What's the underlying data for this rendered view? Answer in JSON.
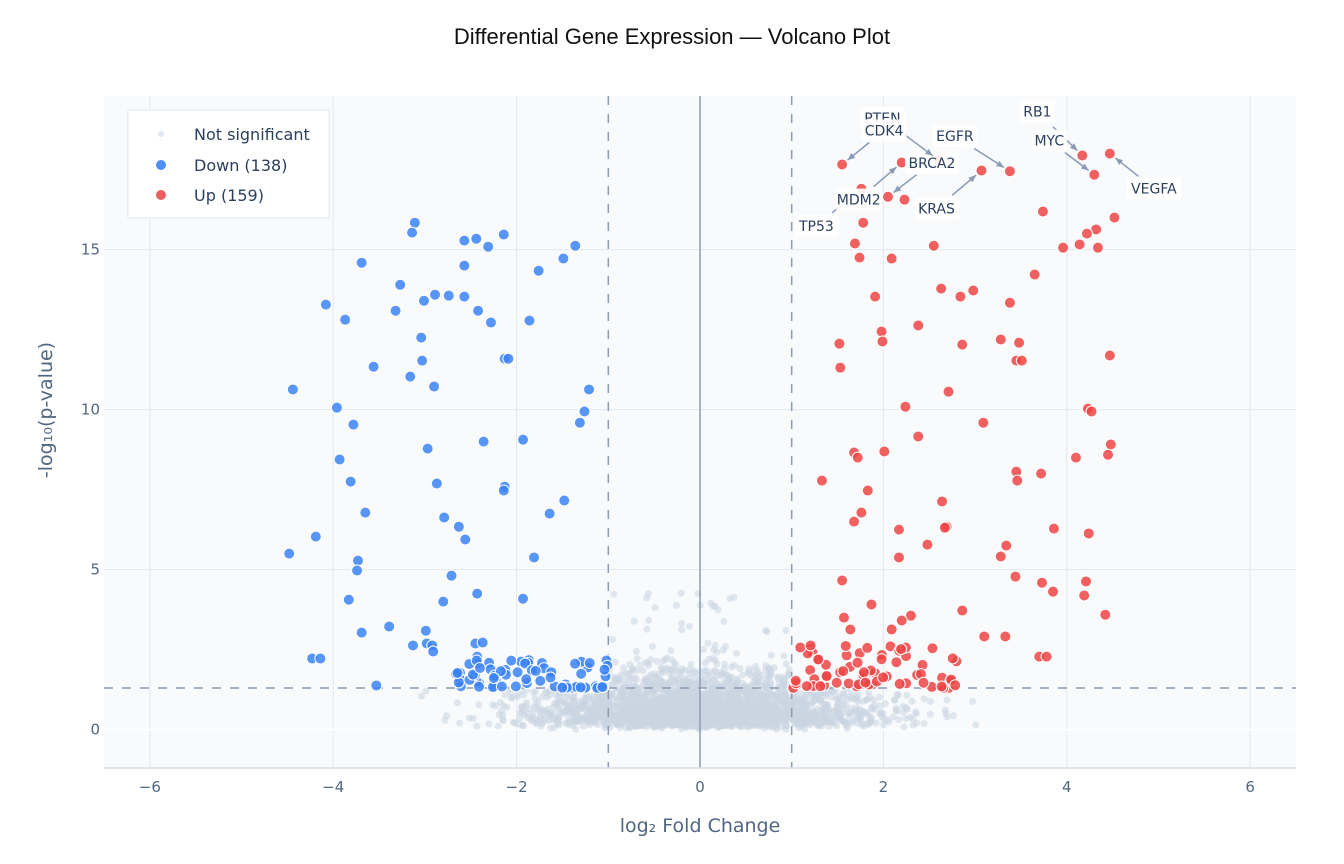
{
  "chart_data": {
    "type": "scatter",
    "title": "Differential Gene Expression — Volcano Plot",
    "xlabel": "log₂ Fold Change",
    "ylabel": "-log₁₀(p-value)",
    "xlim": [
      -6.5,
      6.5
    ],
    "ylim": [
      -1.2,
      19.8
    ],
    "xticks": [
      -6,
      -4,
      -2,
      0,
      2,
      4,
      6
    ],
    "xtick_labels": [
      "−6",
      "−4",
      "−2",
      "0",
      "2",
      "4",
      "6"
    ],
    "yticks": [
      0,
      5,
      10,
      15
    ],
    "ytick_labels": [
      "0",
      "5",
      "10",
      "15"
    ],
    "grid": true,
    "thresholds": {
      "fold_change": [
        -1,
        1
      ],
      "neg_log10_p": 1.3
    },
    "legend": {
      "placement": "top-left",
      "entries": [
        "Not significant",
        "Down (138)",
        "Up (159)"
      ]
    },
    "colors": {
      "not_significant": "#cbd5e1",
      "down": "#3b82f6",
      "up": "#ef4444",
      "threshold": "#8b9bb4"
    },
    "series": [
      {
        "name": "Not significant",
        "approx_count": 3000,
        "note_generated": "dense cloud |x|<~3, y<~2.6"
      },
      {
        "name": "Down (138)",
        "points": [
          [
            -3.11,
            15.84
          ],
          [
            -3.14,
            15.53
          ],
          [
            -2.14,
            15.47
          ],
          [
            -2.44,
            15.34
          ],
          [
            -2.57,
            15.28
          ],
          [
            -2.31,
            15.09
          ],
          [
            -1.36,
            15.12
          ],
          [
            -1.49,
            14.72
          ],
          [
            -3.69,
            14.59
          ],
          [
            -2.57,
            14.5
          ],
          [
            -1.76,
            14.34
          ],
          [
            -3.27,
            13.9
          ],
          [
            -4.08,
            13.28
          ],
          [
            -2.89,
            13.59
          ],
          [
            -2.74,
            13.56
          ],
          [
            -2.57,
            13.53
          ],
          [
            -3.01,
            13.4
          ],
          [
            -3.32,
            13.09
          ],
          [
            -2.42,
            13.09
          ],
          [
            -3.87,
            12.81
          ],
          [
            -2.28,
            12.72
          ],
          [
            -1.86,
            12.78
          ],
          [
            -3.04,
            12.25
          ],
          [
            -2.13,
            11.59
          ],
          [
            -2.09,
            11.59
          ],
          [
            -3.03,
            11.53
          ],
          [
            -3.56,
            11.34
          ],
          [
            -3.16,
            11.03
          ],
          [
            -1.21,
            10.63
          ],
          [
            -4.44,
            10.63
          ],
          [
            -2.9,
            10.72
          ],
          [
            -1.26,
            9.94
          ],
          [
            -3.96,
            10.06
          ],
          [
            -1.31,
            9.59
          ],
          [
            -3.78,
            9.53
          ],
          [
            -2.36,
            9.0
          ],
          [
            -1.93,
            9.06
          ],
          [
            -2.97,
            8.78
          ],
          [
            -3.93,
            8.44
          ],
          [
            -3.81,
            7.75
          ],
          [
            -2.87,
            7.69
          ],
          [
            -2.13,
            7.59
          ],
          [
            -2.14,
            7.47
          ],
          [
            -1.48,
            7.16
          ],
          [
            -1.64,
            6.75
          ],
          [
            -3.65,
            6.78
          ],
          [
            -2.79,
            6.63
          ],
          [
            -2.63,
            6.34
          ],
          [
            -2.56,
            5.94
          ],
          [
            -4.48,
            5.5
          ],
          [
            -4.19,
            6.03
          ],
          [
            -3.73,
            5.28
          ],
          [
            -3.74,
            4.97
          ],
          [
            -1.81,
            5.38
          ],
          [
            -2.71,
            4.81
          ],
          [
            -2.43,
            4.25
          ],
          [
            -3.83,
            4.06
          ],
          [
            -1.93,
            4.09
          ],
          [
            -2.8,
            4.0
          ],
          [
            -3.39,
            3.22
          ],
          [
            -3.69,
            3.03
          ],
          [
            -2.99,
            3.09
          ],
          [
            -2.98,
            2.69
          ],
          [
            -3.13,
            2.63
          ],
          [
            -2.92,
            2.63
          ],
          [
            -2.45,
            2.69
          ],
          [
            -2.37,
            2.72
          ],
          [
            -2.91,
            2.44
          ],
          [
            -4.23,
            2.22
          ],
          [
            -4.14,
            2.22
          ],
          [
            -2.43,
            2.28
          ],
          [
            -2.3,
            2.09
          ],
          [
            -3.53,
            1.38
          ]
        ],
        "cluster": {
          "count": 65,
          "x_range": [
            -2.7,
            -1.0
          ],
          "y_range": [
            1.3,
            2.2
          ]
        }
      },
      {
        "name": "Up (159)",
        "points": [
          [
            1.55,
            17.66
          ],
          [
            2.2,
            17.72
          ],
          [
            2.05,
            16.65
          ],
          [
            1.76,
            16.9
          ],
          [
            2.6,
            17.8
          ],
          [
            3.38,
            17.45
          ],
          [
            3.07,
            17.47
          ],
          [
            4.17,
            17.94
          ],
          [
            4.3,
            17.34
          ],
          [
            4.47,
            18.0
          ],
          [
            2.23,
            16.56
          ],
          [
            3.74,
            16.19
          ],
          [
            1.78,
            15.84
          ],
          [
            4.52,
            16.0
          ],
          [
            4.32,
            15.63
          ],
          [
            4.22,
            15.5
          ],
          [
            1.69,
            15.19
          ],
          [
            2.55,
            15.12
          ],
          [
            4.14,
            15.16
          ],
          [
            3.96,
            15.06
          ],
          [
            4.34,
            15.06
          ],
          [
            1.74,
            14.75
          ],
          [
            2.09,
            14.72
          ],
          [
            3.65,
            14.22
          ],
          [
            2.63,
            13.78
          ],
          [
            2.98,
            13.72
          ],
          [
            2.84,
            13.53
          ],
          [
            1.91,
            13.53
          ],
          [
            3.38,
            13.34
          ],
          [
            2.38,
            12.63
          ],
          [
            1.98,
            12.44
          ],
          [
            1.52,
            12.06
          ],
          [
            1.99,
            12.13
          ],
          [
            2.86,
            12.03
          ],
          [
            3.28,
            12.19
          ],
          [
            3.48,
            12.09
          ],
          [
            3.45,
            11.53
          ],
          [
            3.51,
            11.53
          ],
          [
            4.47,
            11.69
          ],
          [
            1.53,
            11.31
          ],
          [
            2.71,
            10.56
          ],
          [
            2.24,
            10.09
          ],
          [
            4.23,
            10.03
          ],
          [
            4.27,
            9.94
          ],
          [
            3.09,
            9.59
          ],
          [
            2.38,
            9.16
          ],
          [
            4.48,
            8.91
          ],
          [
            1.68,
            8.66
          ],
          [
            2.01,
            8.69
          ],
          [
            1.72,
            8.5
          ],
          [
            4.1,
            8.5
          ],
          [
            4.45,
            8.59
          ],
          [
            3.45,
            8.06
          ],
          [
            3.72,
            8.0
          ],
          [
            3.46,
            7.78
          ],
          [
            1.33,
            7.78
          ],
          [
            1.83,
            7.47
          ],
          [
            2.64,
            7.13
          ],
          [
            1.76,
            6.78
          ],
          [
            1.68,
            6.5
          ],
          [
            2.69,
            6.34
          ],
          [
            2.67,
            6.31
          ],
          [
            3.86,
            6.28
          ],
          [
            2.17,
            6.25
          ],
          [
            4.24,
            6.13
          ],
          [
            3.34,
            5.75
          ],
          [
            2.48,
            5.78
          ],
          [
            2.17,
            5.38
          ],
          [
            3.28,
            5.41
          ],
          [
            3.44,
            4.78
          ],
          [
            1.55,
            4.66
          ],
          [
            4.21,
            4.63
          ],
          [
            3.73,
            4.59
          ],
          [
            4.19,
            4.19
          ],
          [
            3.85,
            4.31
          ],
          [
            1.87,
            3.91
          ],
          [
            2.86,
            3.72
          ],
          [
            4.42,
            3.59
          ],
          [
            2.3,
            3.56
          ],
          [
            1.57,
            3.5
          ],
          [
            2.2,
            3.41
          ],
          [
            2.09,
            3.13
          ],
          [
            1.64,
            3.13
          ],
          [
            3.1,
            2.91
          ],
          [
            3.33,
            2.91
          ],
          [
            3.7,
            2.28
          ],
          [
            3.78,
            2.28
          ]
        ],
        "cluster": {
          "count": 72,
          "x_range": [
            1.0,
            2.8
          ],
          "y_range": [
            1.3,
            2.7
          ]
        }
      }
    ],
    "annotations": [
      {
        "text": "TP53",
        "x": 1.76,
        "y": 16.9
      },
      {
        "text": "MDM2",
        "x": 2.2,
        "y": 17.72
      },
      {
        "text": "BRCA2",
        "x": 2.05,
        "y": 16.65
      },
      {
        "text": "PTEN",
        "x": 2.6,
        "y": 17.8
      },
      {
        "text": "CDK4",
        "x": 1.55,
        "y": 17.66
      },
      {
        "text": "EGFR",
        "x": 3.38,
        "y": 17.45
      },
      {
        "text": "KRAS",
        "x": 3.07,
        "y": 17.47
      },
      {
        "text": "RB1",
        "x": 4.17,
        "y": 17.94
      },
      {
        "text": "MYC",
        "x": 4.3,
        "y": 17.34
      },
      {
        "text": "VEGFA",
        "x": 4.47,
        "y": 18.0
      }
    ]
  }
}
